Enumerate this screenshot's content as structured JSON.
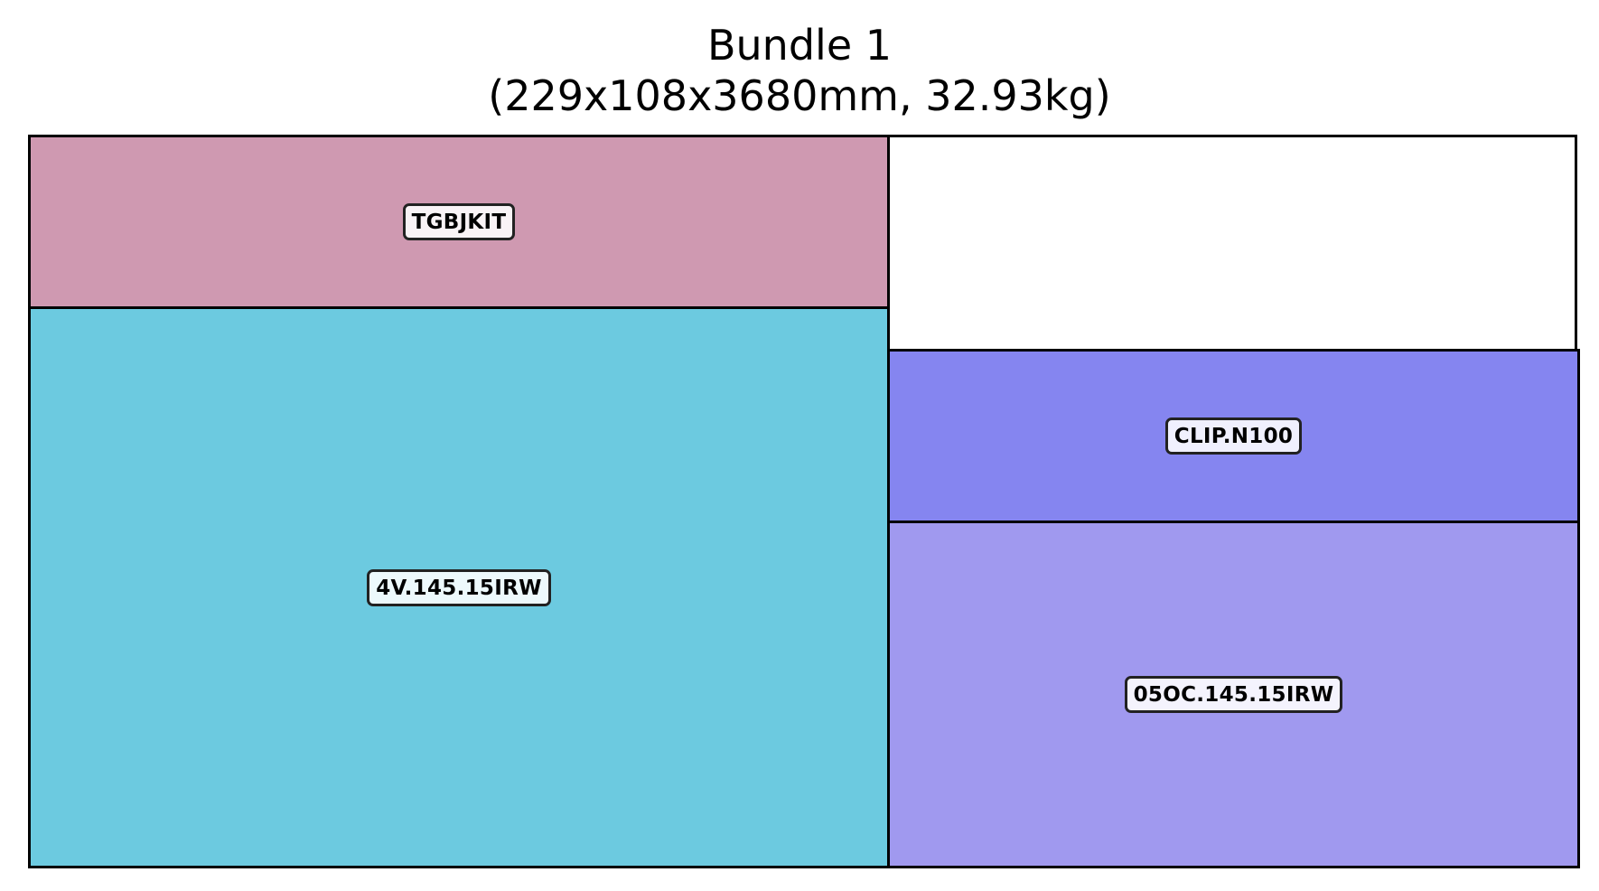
{
  "title": {
    "line1": "Bundle 1",
    "line2": "(229x108x3680mm, 32.93kg)"
  },
  "items": [
    {
      "id": "tgbjkit",
      "label": "TGBJKIT",
      "color": "#cf99b1"
    },
    {
      "id": "4v",
      "label": "4V.145.15IRW",
      "color": "#6ccae0"
    },
    {
      "id": "clip",
      "label": "CLIP.N100",
      "color": "#8585f0"
    },
    {
      "id": "05oc",
      "label": "05OC.145.15IRW",
      "color": "#a099ef"
    }
  ]
}
